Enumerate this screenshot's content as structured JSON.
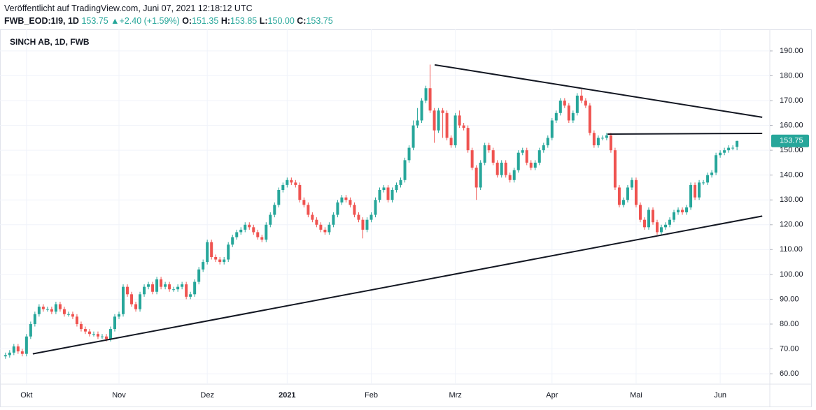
{
  "header": {
    "published": "Veröffentlicht auf TradingView.com, Juni 07, 2021 12:18:12 UTC",
    "symbol": "FWB_EOD:1I9, 1D",
    "last": "153.75",
    "arrow": "▲",
    "change": "+2.40 (+1.59%)",
    "o_label": "O:",
    "o": "151.35",
    "h_label": "H:",
    "h": "153.85",
    "l_label": "L:",
    "l": "150.00",
    "c_label": "C:",
    "c": "153.75"
  },
  "chart_data": {
    "type": "candlestick",
    "title": "SINCH AB, 1D, FWB",
    "up_color": "#26a69a",
    "down_color": "#ef5350",
    "trendline_color": "#131722",
    "last_price": {
      "value": 153.75,
      "label": "153.75"
    },
    "xlim": [
      -1.3,
      181.8
    ],
    "ylim": [
      55.8,
      198.7
    ],
    "xticks": [
      {
        "value": 5,
        "label": "Okt"
      },
      {
        "value": 27,
        "label": "Nov"
      },
      {
        "value": 48,
        "label": "Dez"
      },
      {
        "value": 67,
        "label": "2021"
      },
      {
        "value": 87,
        "label": "Feb"
      },
      {
        "value": 107,
        "label": "Mrz"
      },
      {
        "value": 130,
        "label": "Apr"
      },
      {
        "value": 150,
        "label": "Mai"
      },
      {
        "value": 170,
        "label": "Jun"
      }
    ],
    "yticks": [
      {
        "value": 60,
        "label": "60.00"
      },
      {
        "value": 70,
        "label": "70.00"
      },
      {
        "value": 80,
        "label": "80.00"
      },
      {
        "value": 90,
        "label": "90.00"
      },
      {
        "value": 100,
        "label": "100.00"
      },
      {
        "value": 110,
        "label": "110.00"
      },
      {
        "value": 120,
        "label": "120.00"
      },
      {
        "value": 130,
        "label": "130.00"
      },
      {
        "value": 140,
        "label": "140.00"
      },
      {
        "value": 150,
        "label": "150.00"
      },
      {
        "value": 160,
        "label": "160.00"
      },
      {
        "value": 170,
        "label": "170.00"
      },
      {
        "value": 180,
        "label": "180.00"
      },
      {
        "value": 190,
        "label": "190.00"
      }
    ],
    "grid": true,
    "open": [
      67,
      67.5,
      68.5,
      71,
      69,
      68,
      75,
      80,
      84,
      87,
      86,
      86,
      85,
      88,
      86,
      84,
      84,
      83,
      80,
      78,
      77,
      76,
      76,
      75,
      75,
      74,
      78,
      83,
      84,
      95,
      92,
      88,
      86,
      92,
      95,
      96,
      93,
      98,
      95,
      96,
      94,
      94,
      95,
      96,
      91,
      92,
      97,
      102,
      105,
      113,
      107,
      106,
      105,
      106,
      112,
      115,
      117,
      118,
      120,
      119,
      117,
      115,
      114,
      120,
      124,
      128,
      134,
      136,
      138,
      137,
      136,
      130,
      128,
      124,
      122,
      120,
      118,
      117,
      120,
      124,
      129,
      131,
      130,
      128,
      124,
      122,
      118,
      122,
      124,
      130,
      134,
      135,
      130,
      134,
      136,
      138,
      146,
      151,
      160,
      162,
      170,
      175,
      166,
      158,
      166,
      165,
      155,
      152,
      164,
      160,
      159,
      150,
      143,
      135,
      145,
      152,
      150,
      145,
      140,
      145,
      140,
      138,
      142,
      149,
      150,
      145,
      143,
      145,
      150,
      152,
      155,
      162,
      165,
      170,
      168,
      162,
      165,
      172,
      170,
      168,
      157,
      152,
      155,
      155,
      156,
      150,
      135,
      128,
      130,
      135,
      138,
      128,
      122,
      119,
      126,
      121,
      117,
      119,
      120,
      122,
      125,
      126,
      125,
      127,
      136,
      131,
      137,
      137,
      140,
      141,
      148,
      149,
      150,
      151,
      151.35
    ],
    "high": [
      68.5,
      69.5,
      72,
      72,
      70,
      76,
      81,
      85,
      88,
      88,
      87,
      87,
      89,
      89,
      87,
      85,
      85,
      84,
      81,
      79,
      78,
      77,
      77,
      76,
      76,
      79,
      84,
      85,
      96,
      96,
      93,
      89,
      93,
      96,
      97,
      97,
      99,
      99,
      97,
      97,
      95,
      96,
      97,
      97,
      93,
      98,
      103,
      106,
      114,
      114,
      108,
      107,
      107,
      113,
      116,
      118,
      119,
      121,
      121,
      120,
      118,
      116,
      121,
      125,
      129,
      135,
      137,
      139,
      139,
      138,
      137,
      131,
      129,
      125,
      123,
      121,
      119,
      121,
      125,
      130,
      132,
      132,
      131,
      129,
      125,
      123,
      123,
      125,
      131,
      135,
      136,
      136,
      135,
      137,
      139,
      147,
      152,
      162,
      167,
      171,
      176,
      184.5,
      167,
      167,
      167,
      166,
      156,
      165,
      166,
      161,
      160,
      151,
      144,
      146,
      153,
      153,
      151,
      146,
      146,
      146,
      141,
      143,
      150,
      151,
      151,
      146,
      146,
      151,
      153,
      156,
      163,
      166,
      171,
      171,
      169,
      166,
      173,
      174.5,
      171,
      169,
      158,
      156,
      156,
      157,
      157,
      151,
      136,
      131,
      136,
      139,
      139,
      129,
      123,
      127,
      127,
      122,
      120,
      121,
      123,
      126,
      127,
      127,
      128,
      137,
      137,
      138,
      138,
      141,
      142,
      149,
      150,
      151,
      152,
      152,
      153.85
    ],
    "low": [
      66,
      66.5,
      67.5,
      68,
      67,
      67,
      74,
      79,
      83,
      85,
      85,
      84,
      84,
      85,
      83,
      83,
      82,
      79,
      77,
      76,
      75,
      75,
      74,
      74,
      73,
      73,
      77,
      82,
      83,
      91,
      87,
      85,
      85,
      91,
      94,
      92,
      92,
      94,
      94,
      93,
      93,
      93,
      94,
      90,
      90,
      91,
      96,
      101,
      104,
      106,
      105,
      104,
      104,
      105,
      111,
      114,
      116,
      117,
      118,
      116,
      114,
      113,
      113,
      119,
      123,
      127,
      133,
      135,
      136,
      135,
      129,
      127,
      123,
      121,
      119,
      117,
      116,
      116,
      119,
      123,
      128,
      129,
      127,
      123,
      121,
      114.5,
      117,
      121,
      123,
      129,
      133,
      129,
      129,
      133,
      135,
      137,
      145,
      150,
      159,
      161,
      169,
      165,
      153,
      157,
      155,
      154,
      151,
      151,
      159,
      158,
      149,
      142,
      130,
      134,
      144,
      149,
      144,
      139,
      139,
      139,
      137,
      137,
      141,
      148,
      144,
      142,
      142,
      144,
      149,
      151,
      154,
      161,
      164,
      167,
      161,
      161,
      164,
      169,
      167,
      156,
      151,
      151,
      154,
      154,
      149,
      134,
      127,
      127,
      129,
      134,
      127,
      121,
      118,
      118,
      120,
      116,
      116,
      118,
      119,
      121,
      124,
      124,
      124,
      126,
      130,
      130,
      136,
      136,
      139,
      140,
      147,
      148,
      149,
      150,
      150
    ],
    "close": [
      67.5,
      68.5,
      71,
      69,
      68,
      75,
      80,
      84,
      87,
      86,
      86,
      85,
      88,
      86,
      84,
      84,
      83,
      80,
      78,
      77,
      76,
      76,
      75,
      75,
      74,
      78,
      83,
      84,
      95,
      92,
      88,
      86,
      92,
      95,
      96,
      93,
      98,
      95,
      96,
      94,
      94,
      95,
      96,
      91,
      92,
      97,
      102,
      105,
      113,
      107,
      106,
      105,
      106,
      112,
      115,
      117,
      118,
      120,
      119,
      117,
      115,
      114,
      120,
      124,
      128,
      134,
      136,
      138,
      137,
      136,
      130,
      128,
      124,
      122,
      120,
      118,
      117,
      120,
      124,
      129,
      131,
      130,
      128,
      124,
      122,
      118,
      122,
      124,
      130,
      134,
      135,
      130,
      134,
      136,
      138,
      146,
      151,
      160,
      162,
      170,
      175,
      166,
      158,
      166,
      165,
      155,
      152,
      164,
      160,
      159,
      150,
      143,
      135,
      145,
      152,
      150,
      145,
      140,
      145,
      140,
      138,
      142,
      149,
      150,
      145,
      143,
      145,
      150,
      152,
      155,
      162,
      165,
      170,
      168,
      162,
      165,
      172,
      170,
      168,
      157,
      152,
      155,
      155,
      156,
      150,
      135,
      128,
      130,
      135,
      138,
      128,
      122,
      119,
      126,
      121,
      117,
      119,
      120,
      122,
      125,
      126,
      125,
      127,
      136,
      131,
      137,
      137,
      140,
      141,
      148,
      149,
      150,
      151,
      151,
      153.75
    ],
    "trendlines": [
      {
        "x": [
          6.5,
          180
        ],
        "y": [
          68,
          123.5
        ]
      },
      {
        "x": [
          102.1,
          180
        ],
        "y": [
          184.4,
          163.3
        ]
      },
      {
        "x": [
          143.2,
          180
        ],
        "y": [
          156.5,
          156.8
        ]
      }
    ]
  }
}
